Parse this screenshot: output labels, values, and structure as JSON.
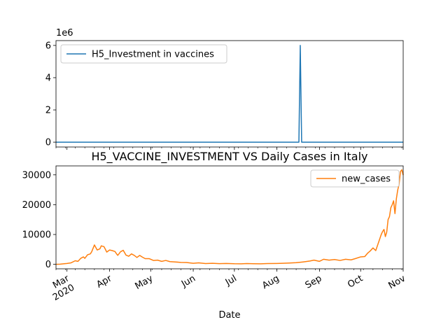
{
  "chart_data": [
    {
      "type": "line",
      "title": "",
      "xlabel": "",
      "ylabel": "",
      "y_scale_label": "1e6",
      "ylim": [
        -300000,
        6300000
      ],
      "yticks": [
        0,
        2,
        4,
        6
      ],
      "ytick_labels": [
        "0",
        "2",
        "4",
        "6"
      ],
      "x_start": "2020-02-22",
      "x_end": "2020-11-01",
      "grid": false,
      "legend_placement": "upper-left",
      "series": [
        {
          "name": "H5_Investment in vaccines",
          "color": "#1f77b4",
          "points": [
            [
              "2020-02-22",
              0
            ],
            [
              "2020-08-17",
              0
            ],
            [
              "2020-08-18",
              6000000
            ],
            [
              "2020-08-19",
              0
            ],
            [
              "2020-11-01",
              0
            ]
          ]
        }
      ]
    },
    {
      "type": "line",
      "title": "H5_VACCINE_INVESTMENT VS Daily Cases in Italy",
      "xlabel": "Date",
      "ylabel": "",
      "ylim": [
        -1500,
        33000
      ],
      "yticks": [
        0,
        10000,
        20000,
        30000
      ],
      "ytick_labels": [
        "0",
        "10000",
        "20000",
        "30000"
      ],
      "x_start": "2020-02-22",
      "x_end": "2020-11-01",
      "xticks": [
        "2020-03-01",
        "2020-04-01",
        "2020-05-01",
        "2020-06-01",
        "2020-07-01",
        "2020-08-01",
        "2020-09-01",
        "2020-10-01",
        "2020-11-01"
      ],
      "xtick_labels": [
        "Mar\n2020",
        "Apr",
        "May",
        "Jun",
        "Jul",
        "Aug",
        "Sep",
        "Oct",
        "Nov"
      ],
      "grid": false,
      "legend_placement": "upper-right",
      "series": [
        {
          "name": "new_cases",
          "color": "#ff7f0e",
          "points": [
            [
              "2020-02-22",
              0
            ],
            [
              "2020-02-25",
              50
            ],
            [
              "2020-02-28",
              200
            ],
            [
              "2020-03-01",
              300
            ],
            [
              "2020-03-04",
              500
            ],
            [
              "2020-03-07",
              1200
            ],
            [
              "2020-03-09",
              1000
            ],
            [
              "2020-03-11",
              2000
            ],
            [
              "2020-03-13",
              2500
            ],
            [
              "2020-03-14",
              2000
            ],
            [
              "2020-03-16",
              3200
            ],
            [
              "2020-03-18",
              3500
            ],
            [
              "2020-03-19",
              4200
            ],
            [
              "2020-03-21",
              6500
            ],
            [
              "2020-03-23",
              4800
            ],
            [
              "2020-03-25",
              5200
            ],
            [
              "2020-03-26",
              6200
            ],
            [
              "2020-03-28",
              5900
            ],
            [
              "2020-03-30",
              4100
            ],
            [
              "2020-04-01",
              4800
            ],
            [
              "2020-04-03",
              4600
            ],
            [
              "2020-04-05",
              4300
            ],
            [
              "2020-04-06",
              3600
            ],
            [
              "2020-04-07",
              3000
            ],
            [
              "2020-04-09",
              4200
            ],
            [
              "2020-04-11",
              4700
            ],
            [
              "2020-04-13",
              3100
            ],
            [
              "2020-04-15",
              2700
            ],
            [
              "2020-04-17",
              3500
            ],
            [
              "2020-04-19",
              3000
            ],
            [
              "2020-04-21",
              2300
            ],
            [
              "2020-04-23",
              3000
            ],
            [
              "2020-04-25",
              2400
            ],
            [
              "2020-04-27",
              1900
            ],
            [
              "2020-04-30",
              1900
            ],
            [
              "2020-05-03",
              1300
            ],
            [
              "2020-05-06",
              1400
            ],
            [
              "2020-05-09",
              1000
            ],
            [
              "2020-05-12",
              1300
            ],
            [
              "2020-05-15",
              900
            ],
            [
              "2020-05-19",
              800
            ],
            [
              "2020-05-23",
              650
            ],
            [
              "2020-05-27",
              600
            ],
            [
              "2020-06-01",
              350
            ],
            [
              "2020-06-05",
              500
            ],
            [
              "2020-06-10",
              250
            ],
            [
              "2020-06-15",
              350
            ],
            [
              "2020-06-20",
              220
            ],
            [
              "2020-06-25",
              300
            ],
            [
              "2020-07-01",
              200
            ],
            [
              "2020-07-06",
              180
            ],
            [
              "2020-07-10",
              250
            ],
            [
              "2020-07-15",
              200
            ],
            [
              "2020-07-20",
              180
            ],
            [
              "2020-07-25",
              250
            ],
            [
              "2020-08-01",
              300
            ],
            [
              "2020-08-05",
              350
            ],
            [
              "2020-08-10",
              450
            ],
            [
              "2020-08-15",
              550
            ],
            [
              "2020-08-20",
              800
            ],
            [
              "2020-08-25",
              1100
            ],
            [
              "2020-08-28",
              1400
            ],
            [
              "2020-09-01",
              1000
            ],
            [
              "2020-09-04",
              1700
            ],
            [
              "2020-09-08",
              1400
            ],
            [
              "2020-09-12",
              1600
            ],
            [
              "2020-09-16",
              1300
            ],
            [
              "2020-09-20",
              1700
            ],
            [
              "2020-09-24",
              1500
            ],
            [
              "2020-09-27",
              1900
            ],
            [
              "2020-10-01",
              2500
            ],
            [
              "2020-10-04",
              2600
            ],
            [
              "2020-10-06",
              3700
            ],
            [
              "2020-10-08",
              4500
            ],
            [
              "2020-10-10",
              5500
            ],
            [
              "2020-10-12",
              4600
            ],
            [
              "2020-10-14",
              7300
            ],
            [
              "2020-10-16",
              10000
            ],
            [
              "2020-10-17",
              11000
            ],
            [
              "2020-10-18",
              11700
            ],
            [
              "2020-10-19",
              9300
            ],
            [
              "2020-10-20",
              10800
            ],
            [
              "2020-10-21",
              15000
            ],
            [
              "2020-10-22",
              16000
            ],
            [
              "2020-10-23",
              19000
            ],
            [
              "2020-10-24",
              20000
            ],
            [
              "2020-10-25",
              21300
            ],
            [
              "2020-10-26",
              17000
            ],
            [
              "2020-10-27",
              21900
            ],
            [
              "2020-10-28",
              24900
            ],
            [
              "2020-10-29",
              26800
            ],
            [
              "2020-10-30",
              31100
            ],
            [
              "2020-10-31",
              31700
            ],
            [
              "2020-11-01",
              29900
            ]
          ]
        }
      ]
    }
  ]
}
